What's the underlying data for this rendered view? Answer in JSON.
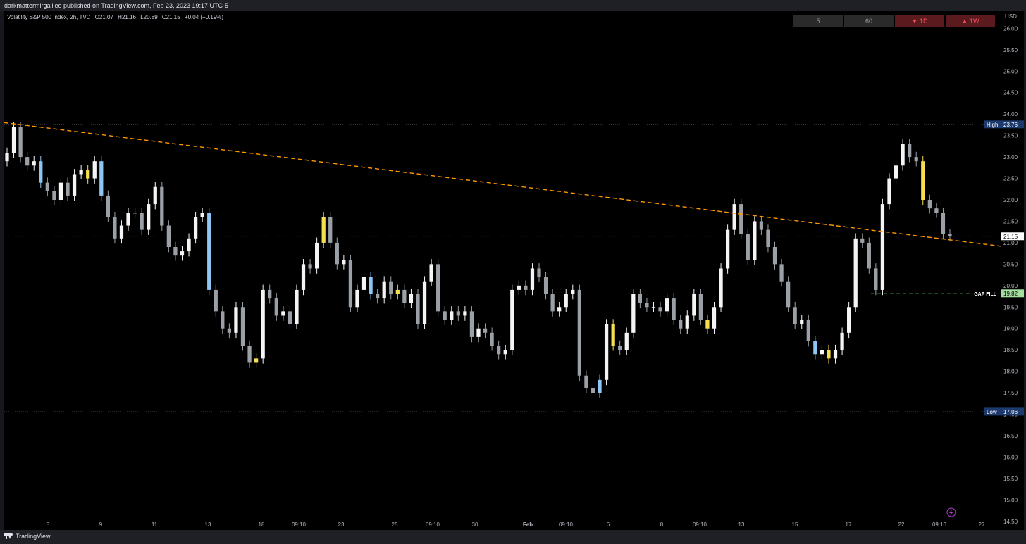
{
  "header": {
    "publisher_text": "darkmattermirgalileo published on TradingView.com, Feb 23, 2023 19:17 UTC-5"
  },
  "legend": {
    "symbol": "Volatility S&P 500 Index, 2h, TVC",
    "open": "O21.07",
    "high": "H21.16",
    "low": "L20.89",
    "close": "C21.15",
    "change": "+0.04 (+0.19%)"
  },
  "timeframe_buttons": [
    {
      "label": "5",
      "style": "neutral"
    },
    {
      "label": "60",
      "style": "neutral"
    },
    {
      "label": "▼ 1D",
      "style": "down"
    },
    {
      "label": "▲ 1W",
      "style": "up"
    }
  ],
  "yaxis": {
    "currency": "USD",
    "ticks": [
      "26.00",
      "25.50",
      "25.00",
      "24.50",
      "24.00",
      "23.50",
      "23.00",
      "22.50",
      "22.00",
      "21.50",
      "21.00",
      "20.50",
      "20.00",
      "19.50",
      "19.00",
      "18.50",
      "18.00",
      "17.50",
      "17.00",
      "16.50",
      "16.00",
      "15.50",
      "15.00",
      "14.50"
    ]
  },
  "markers": {
    "high_label": "High",
    "high_value": "23.76",
    "low_label": "Low",
    "low_value": "17.06",
    "last_value": "21.15",
    "gap_label": "GAP FILL",
    "gap_value": "19.82"
  },
  "xaxis": {
    "ticks": [
      "5",
      "9",
      "11",
      "13",
      "18",
      "09:10",
      "23",
      "25",
      "09:10",
      "30",
      "Feb",
      "09:10",
      "6",
      "8",
      "09:10",
      "13",
      "15",
      "17",
      "22",
      "09:10",
      "27"
    ]
  },
  "footer": {
    "brand": "TradingView"
  },
  "colors": {
    "bear_candle": "#9aa0a6",
    "bull_candle": "#f5f5f5",
    "blue_candle": "#8ec5f5",
    "yellow_candle": "#f4e04d",
    "trendline": "#ff9800",
    "gap_line": "#4caf50",
    "high_badge": "#1c3a6e",
    "gap_badge": "#a5e0a0"
  },
  "chart_data": {
    "type": "candlestick",
    "title": "Volatility S&P 500 Index, 2h, TVC",
    "ylabel": "USD",
    "ylim": [
      14.3,
      26.4
    ],
    "high": 23.76,
    "low": 17.06,
    "last": 21.15,
    "gap_fill": 19.82,
    "trendline": {
      "start": 23.8,
      "end": 20.92
    },
    "closes": [
      23.1,
      23.7,
      23.0,
      22.8,
      22.9,
      22.4,
      22.2,
      22.0,
      22.4,
      22.1,
      22.6,
      22.7,
      22.5,
      22.9,
      22.1,
      21.6,
      21.1,
      21.4,
      21.7,
      21.7,
      21.3,
      21.9,
      22.3,
      21.4,
      20.9,
      20.7,
      20.8,
      21.1,
      21.6,
      21.7,
      19.9,
      19.4,
      19.0,
      18.9,
      19.5,
      18.6,
      18.2,
      18.3,
      19.9,
      19.7,
      19.3,
      19.4,
      19.1,
      19.9,
      20.5,
      20.4,
      21.0,
      21.6,
      21.0,
      20.5,
      20.6,
      19.5,
      19.9,
      20.2,
      19.8,
      19.7,
      20.1,
      19.8,
      19.9,
      19.6,
      19.8,
      19.1,
      20.1,
      20.5,
      19.4,
      19.2,
      19.4,
      19.3,
      19.4,
      18.8,
      19.0,
      18.9,
      18.6,
      18.4,
      18.5,
      19.9,
      20.0,
      19.9,
      20.4,
      20.2,
      19.8,
      19.4,
      19.5,
      19.8,
      19.9,
      17.9,
      17.6,
      17.5,
      17.8,
      19.1,
      18.6,
      18.5,
      18.9,
      19.8,
      19.6,
      19.5,
      19.5,
      19.4,
      19.7,
      19.2,
      19.0,
      19.3,
      19.8,
      19.2,
      19.0,
      19.5,
      20.4,
      21.3,
      21.9,
      21.2,
      20.6,
      21.5,
      21.3,
      20.9,
      20.5,
      20.1,
      19.5,
      19.1,
      19.2,
      18.7,
      18.4,
      18.5,
      18.3,
      18.5,
      18.9,
      19.5,
      21.1,
      21.0,
      20.4,
      19.9,
      21.9,
      22.5,
      22.8,
      23.3,
      23.0,
      22.9,
      22.0,
      21.8,
      21.7,
      21.2,
      21.15
    ]
  }
}
